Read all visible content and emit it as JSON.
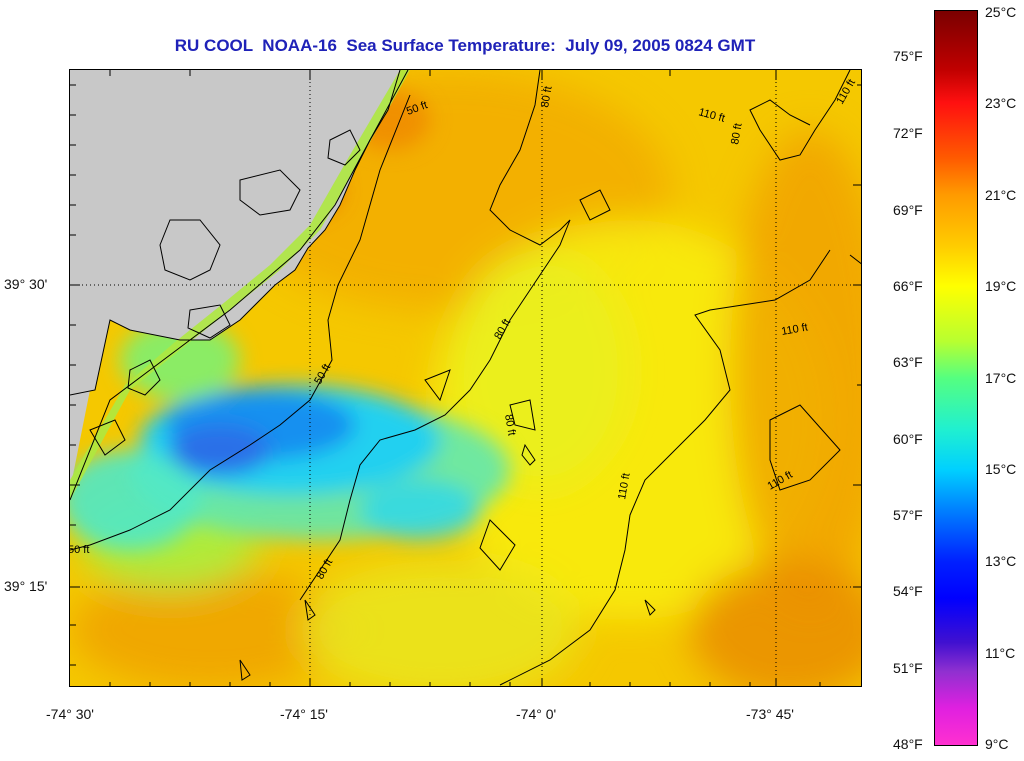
{
  "title": "RU COOL  NOAA-16  Sea Surface Temperature:  July 09, 2005 0824 GMT",
  "latitude_labels": [
    "39° 30'",
    "39° 15'"
  ],
  "longitude_labels": [
    "-74° 30'",
    "-74° 15'",
    "-74° 0'",
    "-73° 45'"
  ],
  "colorbar": {
    "fahrenheit": [
      "75°F",
      "72°F",
      "69°F",
      "66°F",
      "63°F",
      "60°F",
      "57°F",
      "54°F",
      "51°F",
      "48°F"
    ],
    "celsius": [
      "25°C",
      "23°C",
      "21°C",
      "19°C",
      "17°C",
      "15°C",
      "13°C",
      "11°C",
      "9°C"
    ],
    "range_celsius": [
      9,
      25
    ]
  },
  "depth_contours": [
    "50 ft",
    "80 ft",
    "110 ft"
  ],
  "contour_labels": [
    "50 ft",
    "80 ft",
    "110 ft",
    "80 ft",
    "110 ft",
    "80 ft",
    "110 ft",
    "80 ft",
    "110 ft",
    "50 ft",
    "80 ft",
    "50 ft",
    "110 ft"
  ],
  "colors": {
    "land": "#c8c8c8",
    "title": "#1f22b8",
    "warm_water": "#f2b000",
    "cold_water": "#1aa8ff",
    "hot_water": "#e86a00"
  }
}
